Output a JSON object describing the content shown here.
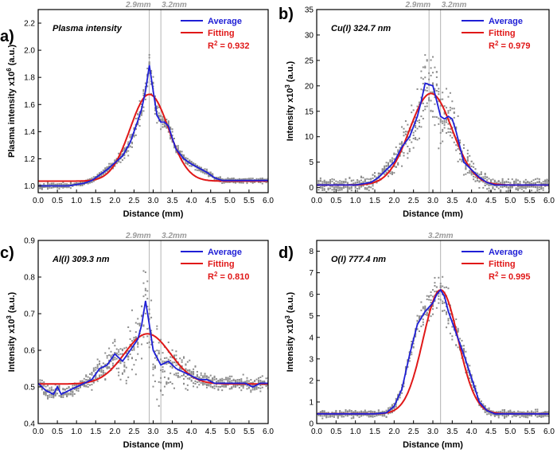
{
  "chart_data": [
    {
      "panel_label": "a)",
      "title": "Plasma intensity",
      "type": "line",
      "xlabel": "Distance (mm)",
      "ylabel_main": "Plasma intensity x10",
      "ylabel_sup": "6",
      "ylabel_tail": " (a.u.)",
      "xlim": [
        0,
        6
      ],
      "ylim": [
        0.95,
        2.3
      ],
      "x_ticks": [
        "0.0",
        "0.5",
        "1.0",
        "1.5",
        "2.0",
        "2.5",
        "3.0",
        "3.5",
        "4.0",
        "4.5",
        "5.0",
        "5.5",
        "6.0"
      ],
      "y_ticks": [
        "1.0",
        "1.2",
        "1.4",
        "1.6",
        "1.8",
        "2.0",
        "2.2"
      ],
      "markers": [
        {
          "x": 2.9,
          "label": "2.9mm"
        },
        {
          "x": 3.2,
          "label": "3.2mm"
        }
      ],
      "legend": {
        "average": "Average",
        "fitting": "Fitting",
        "r2_label": "R",
        "r2_sup": "2",
        "r2_value": " = 0.932"
      },
      "gauss": {
        "baseline": 1.035,
        "amplitude": 0.64,
        "center": 2.9,
        "sigma": 0.5
      },
      "scatter_spread": 0.05,
      "series": [
        {
          "name": "Average",
          "color": "#1f1fd6",
          "x": [
            0,
            0.2,
            0.4,
            0.6,
            0.8,
            1.0,
            1.2,
            1.4,
            1.6,
            1.8,
            2.0,
            2.2,
            2.4,
            2.6,
            2.7,
            2.8,
            2.9,
            3.0,
            3.1,
            3.2,
            3.3,
            3.4,
            3.5,
            3.6,
            3.8,
            4.0,
            4.2,
            4.4,
            4.6,
            4.8,
            5.0,
            5.2,
            5.4,
            5.6,
            5.8,
            6.0
          ],
          "y": [
            1.0,
            1.0,
            1.0,
            1.0,
            1.0,
            1.01,
            1.02,
            1.04,
            1.08,
            1.12,
            1.17,
            1.22,
            1.32,
            1.48,
            1.57,
            1.7,
            1.89,
            1.7,
            1.52,
            1.47,
            1.47,
            1.44,
            1.35,
            1.27,
            1.2,
            1.16,
            1.13,
            1.1,
            1.06,
            1.04,
            1.04,
            1.04,
            1.04,
            1.04,
            1.04,
            1.04
          ]
        },
        {
          "name": "Fitting",
          "color": "#e01818"
        }
      ]
    },
    {
      "panel_label": "b)",
      "title": "Cu(I) 324.7 nm",
      "type": "line",
      "xlabel": "Distance (mm)",
      "ylabel_main": "Intensity x10",
      "ylabel_sup": "3",
      "ylabel_tail": " (a.u.)",
      "xlim": [
        0,
        6
      ],
      "ylim": [
        -1,
        35
      ],
      "x_ticks": [
        "0.0",
        "0.5",
        "1.0",
        "1.5",
        "2.0",
        "2.5",
        "3.0",
        "3.5",
        "4.0",
        "4.5",
        "5.0",
        "5.5",
        "6.0"
      ],
      "y_ticks": [
        "0",
        "5",
        "10",
        "15",
        "20",
        "25",
        "30",
        "35"
      ],
      "markers": [
        {
          "x": 2.9,
          "label": "2.9mm"
        },
        {
          "x": 3.2,
          "label": "3.2mm"
        }
      ],
      "legend": {
        "average": "Average",
        "fitting": "Fitting",
        "r2_label": "R",
        "r2_sup": "2",
        "r2_value": " = 0.979"
      },
      "gauss": {
        "baseline": 0.5,
        "amplitude": 18.0,
        "center": 2.95,
        "sigma": 0.55
      },
      "scatter_spread": 3.5,
      "series": [
        {
          "name": "Average",
          "color": "#1f1fd6",
          "x": [
            0,
            0.5,
            1.0,
            1.4,
            1.6,
            1.8,
            2.0,
            2.2,
            2.4,
            2.6,
            2.7,
            2.8,
            3.0,
            3.1,
            3.2,
            3.3,
            3.4,
            3.5,
            3.6,
            3.8,
            4.0,
            4.2,
            4.4,
            4.6,
            5.0,
            5.5,
            6.0
          ],
          "y": [
            0.5,
            0.5,
            0.5,
            1.0,
            2.0,
            3.5,
            5.0,
            8.0,
            10.0,
            14.0,
            17.0,
            20.5,
            20.0,
            17.0,
            14.0,
            13.5,
            14.0,
            13.5,
            11.0,
            5.0,
            3.5,
            2.0,
            1.0,
            0.5,
            0.5,
            0.5,
            0.5
          ]
        },
        {
          "name": "Fitting",
          "color": "#e01818"
        }
      ]
    },
    {
      "panel_label": "c)",
      "title": "Al(I) 309.3 nm",
      "type": "line",
      "xlabel": "Distance (mm)",
      "ylabel_main": "Intensity x10",
      "ylabel_sup": "3",
      "ylabel_tail": " (a.u.)",
      "xlim": [
        0,
        6
      ],
      "ylim": [
        0.4,
        0.9
      ],
      "x_ticks": [
        "0.0",
        "0.5",
        "1.0",
        "1.5",
        "2.0",
        "2.5",
        "3.0",
        "3.5",
        "4.0",
        "4.5",
        "5.0",
        "5.5",
        "6.0"
      ],
      "y_ticks": [
        "0.4",
        "0.5",
        "0.6",
        "0.7",
        "0.8",
        "0.9"
      ],
      "markers": [
        {
          "x": 2.9,
          "label": "2.9mm"
        },
        {
          "x": 3.2,
          "label": "3.2mm"
        }
      ],
      "legend": {
        "average": "Average",
        "fitting": "Fitting",
        "r2_label": "R",
        "r2_sup": "2",
        "r2_value": " = 0.810"
      },
      "gauss": {
        "baseline": 0.508,
        "amplitude": 0.137,
        "center": 2.85,
        "sigma": 0.6
      },
      "scatter_spread": 0.05,
      "series": [
        {
          "name": "Average",
          "color": "#1f1fd6",
          "x": [
            0,
            0.2,
            0.4,
            0.5,
            0.6,
            0.8,
            1.0,
            1.2,
            1.4,
            1.6,
            1.8,
            2.0,
            2.2,
            2.4,
            2.6,
            2.7,
            2.8,
            2.9,
            3.0,
            3.1,
            3.2,
            3.4,
            3.6,
            3.8,
            4.0,
            4.2,
            4.4,
            4.6,
            4.8,
            5.0,
            5.2,
            5.4,
            5.6,
            5.8,
            6.0
          ],
          "y": [
            0.51,
            0.49,
            0.48,
            0.5,
            0.48,
            0.49,
            0.5,
            0.51,
            0.52,
            0.55,
            0.56,
            0.59,
            0.57,
            0.6,
            0.63,
            0.67,
            0.735,
            0.67,
            0.6,
            0.58,
            0.56,
            0.57,
            0.55,
            0.54,
            0.53,
            0.52,
            0.52,
            0.51,
            0.51,
            0.51,
            0.51,
            0.51,
            0.5,
            0.51,
            0.51
          ]
        },
        {
          "name": "Fitting",
          "color": "#e01818"
        }
      ]
    },
    {
      "panel_label": "d)",
      "title": "O(I)  777.4 nm",
      "type": "line",
      "xlabel": "Distance (mm)",
      "ylabel_main": "Intensity x10",
      "ylabel_sup": "3",
      "ylabel_tail": " (a.u.)",
      "xlim": [
        0,
        6
      ],
      "ylim": [
        0,
        8.5
      ],
      "x_ticks": [
        "0.0",
        "0.5",
        "1.0",
        "1.5",
        "2.0",
        "2.5",
        "3.0",
        "3.5",
        "4.0",
        "4.5",
        "5.0",
        "5.5",
        "6.0"
      ],
      "y_ticks": [
        "0",
        "1",
        "2",
        "3",
        "4",
        "5",
        "6",
        "7",
        "8"
      ],
      "markers": [
        {
          "x": 3.2,
          "label": "3.2mm"
        }
      ],
      "legend": {
        "average": "Average",
        "fitting": "Fitting",
        "r2_label": "R",
        "r2_sup": "2",
        "r2_value": " = 0.995"
      },
      "gauss": {
        "baseline": 0.45,
        "amplitude": 5.75,
        "center": 3.2,
        "sigma": 0.45
      },
      "scatter_spread": 0.45,
      "series": [
        {
          "name": "Average",
          "color": "#1f1fd6",
          "x": [
            0,
            0.5,
            1.0,
            1.5,
            1.8,
            2.0,
            2.2,
            2.4,
            2.6,
            2.8,
            3.0,
            3.1,
            3.2,
            3.3,
            3.4,
            3.6,
            3.8,
            4.0,
            4.2,
            4.4,
            4.6,
            5.0,
            5.5,
            6.0
          ],
          "y": [
            0.45,
            0.45,
            0.45,
            0.45,
            0.5,
            0.8,
            1.6,
            3.2,
            4.6,
            5.2,
            5.6,
            6.0,
            6.2,
            5.9,
            5.2,
            4.2,
            3.2,
            2.1,
            1.0,
            0.6,
            0.45,
            0.45,
            0.45,
            0.45
          ]
        },
        {
          "name": "Fitting",
          "color": "#e01818"
        }
      ]
    }
  ]
}
